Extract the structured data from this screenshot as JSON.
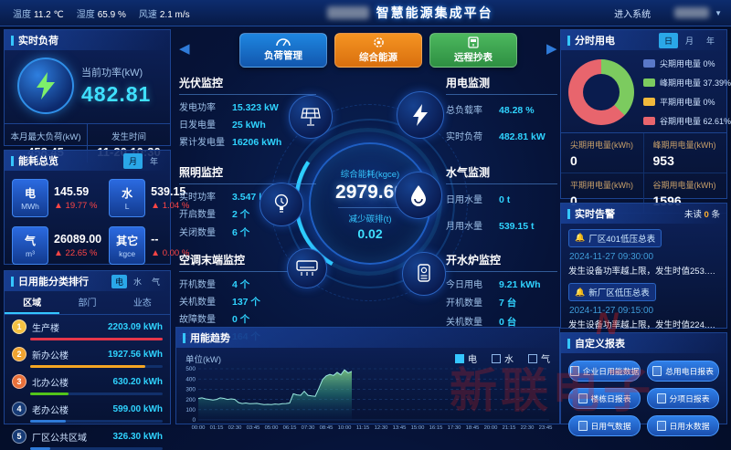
{
  "topbar": {
    "temp_label": "温度",
    "temp": "11.2 ℃",
    "hum_label": "湿度",
    "hum": "65.9 %",
    "wind_label": "风速",
    "wind": "2.1 m/s",
    "title": "智慧能源集成平台",
    "enter": "进入系统"
  },
  "realtime_load": {
    "title": "实时负荷",
    "power_label": "当前功率(kW)",
    "power": "482.81",
    "max_label": "本月最大负荷(kW)",
    "max": "458.45",
    "time_label": "发生时间",
    "time": "11-20 10:30"
  },
  "energy_overview": {
    "title": "能耗总览",
    "toggle": [
      "月",
      "年"
    ],
    "items": [
      {
        "name": "电",
        "unit": "MWh",
        "value": "145.59",
        "pct": "19.77 %"
      },
      {
        "name": "水",
        "unit": "L",
        "value": "539.15",
        "pct": "1.04 %"
      },
      {
        "name": "气",
        "unit": "m³",
        "value": "26089.00",
        "pct": "22.65 %"
      },
      {
        "name": "其它",
        "unit": "kgce",
        "value": "--",
        "pct": "0.00 %"
      }
    ],
    "up_arrow": "▲"
  },
  "ranking": {
    "title": "日用能分类排行",
    "tabs": [
      "电",
      "水",
      "气"
    ],
    "subtabs": [
      "区域",
      "部门",
      "业态"
    ],
    "rows": [
      {
        "rank": "1",
        "name": "生产楼",
        "value": "2203.09 kWh",
        "bar": 100,
        "color": "#e5364a",
        "badge": "#f5c242"
      },
      {
        "rank": "2",
        "name": "新办公楼",
        "value": "1927.56 kWh",
        "bar": 87,
        "color": "#f5a623",
        "badge": "#f0a32f"
      },
      {
        "rank": "3",
        "name": "北办公楼",
        "value": "630.20 kWh",
        "bar": 29,
        "color": "#52c41a",
        "badge": "#e8703a"
      },
      {
        "rank": "4",
        "name": "老办公楼",
        "value": "599.00 kWh",
        "bar": 27,
        "color": "#2f7bd9",
        "badge": "#163a75"
      },
      {
        "rank": "5",
        "name": "厂区公共区域",
        "value": "326.30 kWh",
        "bar": 15,
        "color": "#2f7bd9",
        "badge": "#163a75"
      }
    ]
  },
  "nav_buttons": [
    {
      "label": "负荷管理",
      "icon": "gauge",
      "color1": "#1e86e0",
      "color2": "#1257ae"
    },
    {
      "label": "综合能源",
      "icon": "gear",
      "color1": "#f59422",
      "color2": "#d96f0e"
    },
    {
      "label": "远程抄表",
      "icon": "meter",
      "color1": "#4cb85e",
      "color2": "#2e8f42"
    }
  ],
  "center": {
    "kgce_label": "综合能耗(kgce)",
    "kgce": "2979.60",
    "carbon_label": "减少碳排(t)",
    "carbon": "0.02",
    "pv": {
      "title": "光伏监控",
      "rows": [
        {
          "l": "发电功率",
          "v": "15.323 kW"
        },
        {
          "l": "日发电量",
          "v": "25 kWh"
        },
        {
          "l": "累计发电量",
          "v": "16206 kWh"
        }
      ]
    },
    "power": {
      "title": "用电监测",
      "rows": [
        {
          "l": "总负载率",
          "v": "48.28 %"
        },
        {
          "l": "实时负荷",
          "v": "482.81 kW"
        }
      ]
    },
    "light": {
      "title": "照明监控",
      "rows": [
        {
          "l": "实时功率",
          "v": "3.547 kW"
        },
        {
          "l": "开启数量",
          "v": "2 个"
        },
        {
          "l": "关闭数量",
          "v": "6 个"
        }
      ]
    },
    "water": {
      "title": "水气监测",
      "rows": [
        {
          "l": "日用水量",
          "v": "0 t"
        },
        {
          "l": "月用水量",
          "v": "539.15 t"
        }
      ]
    },
    "ac": {
      "title": "空调末端监控",
      "rows": [
        {
          "l": "开机数量",
          "v": "4 个"
        },
        {
          "l": "关机数量",
          "v": "137 个"
        },
        {
          "l": "故障数量",
          "v": "0 个"
        },
        {
          "l": "未知数量",
          "v": "164 个"
        }
      ]
    },
    "boiler": {
      "title": "开水炉监控",
      "rows": [
        {
          "l": "今日用电",
          "v": "9.21 kWh"
        },
        {
          "l": "开机数量",
          "v": "7 台"
        },
        {
          "l": "关机数量",
          "v": "0 台"
        }
      ]
    }
  },
  "tou": {
    "title": "分时用电",
    "toggle": [
      "日",
      "月",
      "年"
    ],
    "legend": [
      {
        "label": "尖期用电量",
        "pct": "0%",
        "color": "#5a78c8"
      },
      {
        "label": "峰期用电量",
        "pct": "37.39%",
        "color": "#7ccb5f"
      },
      {
        "label": "平期用电量",
        "pct": "0%",
        "color": "#f0b93c"
      },
      {
        "label": "谷期用电量",
        "pct": "62.61%",
        "color": "#e8656d"
      }
    ],
    "stats": [
      {
        "label": "尖期用电量(kWh)",
        "value": "0"
      },
      {
        "label": "峰期用电量(kWh)",
        "value": "953"
      },
      {
        "label": "平期用电量(kWh)",
        "value": "0"
      },
      {
        "label": "谷期用电量(kWh)",
        "value": "1596"
      }
    ]
  },
  "alerts": {
    "title": "实时告警",
    "unread_prefix": "未读",
    "unread_count": "0",
    "unread_suffix": "条",
    "items": [
      {
        "tag": "厂区401低压总表",
        "time": "2024-11-27 09:30:00",
        "desc": "发生设备功率越上限，发生时值253.2kW，…"
      },
      {
        "tag": "新厂区低压总表",
        "time": "2024-11-27 09:15:00",
        "desc": "发生设备功率越上限，发生时值224.94kW…"
      }
    ]
  },
  "reports": {
    "title": "自定义报表",
    "buttons": [
      "企业日用能数据",
      "总用电日报表",
      "楼栋日报表",
      "分项日报表",
      "日用气数据",
      "日用水数据"
    ]
  },
  "watermark": {
    "text": "新联电子",
    "mark": "N"
  },
  "chart_data": {
    "type": "area",
    "title": "用能趋势",
    "ylabel": "单位(kW)",
    "ylim": [
      0,
      500
    ],
    "yticks": [
      0,
      100,
      200,
      300,
      400,
      500
    ],
    "xticks": [
      "00:00",
      "01:15",
      "02:30",
      "03:45",
      "05:00",
      "06:15",
      "07:30",
      "08:45",
      "10:00",
      "11:15",
      "12:30",
      "13:45",
      "15:00",
      "16:15",
      "17:30",
      "18:45",
      "20:00",
      "21:15",
      "22:30",
      "23:45"
    ],
    "x_range_minutes": 1440,
    "legend": [
      {
        "label": "电",
        "active": true,
        "color": "#35c6ff"
      },
      {
        "label": "水",
        "active": false,
        "color": "#8fb6e8"
      },
      {
        "label": "气",
        "active": false,
        "color": "#8fb6e8"
      }
    ],
    "series": [
      {
        "name": "电",
        "points": [
          [
            0,
            210
          ],
          [
            15,
            215
          ],
          [
            30,
            205
          ],
          [
            45,
            200
          ],
          [
            60,
            195
          ],
          [
            75,
            200
          ],
          [
            90,
            215
          ],
          [
            105,
            210
          ],
          [
            120,
            200
          ],
          [
            135,
            205
          ],
          [
            150,
            200
          ],
          [
            165,
            170
          ],
          [
            180,
            160
          ],
          [
            195,
            165
          ],
          [
            210,
            158
          ],
          [
            225,
            160
          ],
          [
            240,
            162
          ],
          [
            255,
            155
          ],
          [
            270,
            150
          ],
          [
            285,
            152
          ],
          [
            300,
            150
          ],
          [
            315,
            155
          ],
          [
            330,
            152
          ],
          [
            345,
            158
          ],
          [
            360,
            160
          ],
          [
            375,
            165
          ],
          [
            390,
            255
          ],
          [
            405,
            245
          ],
          [
            420,
            240
          ],
          [
            435,
            280
          ],
          [
            450,
            240
          ],
          [
            465,
            235
          ],
          [
            480,
            230
          ],
          [
            495,
            310
          ],
          [
            510,
            395
          ],
          [
            525,
            430
          ],
          [
            540,
            445
          ],
          [
            555,
            435
          ],
          [
            570,
            465
          ],
          [
            585,
            440
          ],
          [
            600,
            490
          ],
          [
            615,
            460
          ],
          [
            630,
            475
          ]
        ]
      }
    ]
  }
}
